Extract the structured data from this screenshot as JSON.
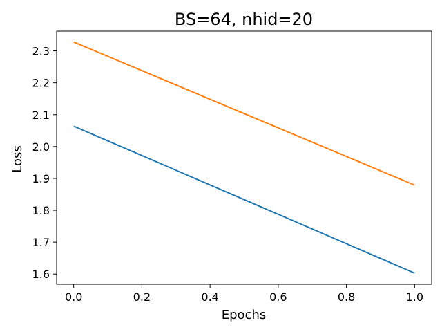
{
  "chart_data": {
    "type": "line",
    "title": "BS=64, nhid=20",
    "xlabel": "Epochs",
    "ylabel": "Loss",
    "xlim": [
      -0.05,
      1.05
    ],
    "ylim": [
      1.568,
      2.362
    ],
    "grid": false,
    "xticks": [
      0.0,
      0.2,
      0.4,
      0.6,
      0.8,
      1.0
    ],
    "xtick_labels": [
      "0.0",
      "0.2",
      "0.4",
      "0.6",
      "0.8",
      "1.0"
    ],
    "yticks": [
      1.6,
      1.7,
      1.8,
      1.9,
      2.0,
      2.1,
      2.2,
      2.3
    ],
    "ytick_labels": [
      "1.6",
      "1.7",
      "1.8",
      "1.9",
      "2.0",
      "2.1",
      "2.2",
      "2.3"
    ],
    "series": [
      {
        "color": "#1f77b4",
        "x": [
          0.0,
          1.0
        ],
        "y": [
          2.064,
          1.603
        ]
      },
      {
        "color": "#ff7f0e",
        "x": [
          0.0,
          1.0
        ],
        "y": [
          2.328,
          1.879
        ]
      }
    ]
  }
}
